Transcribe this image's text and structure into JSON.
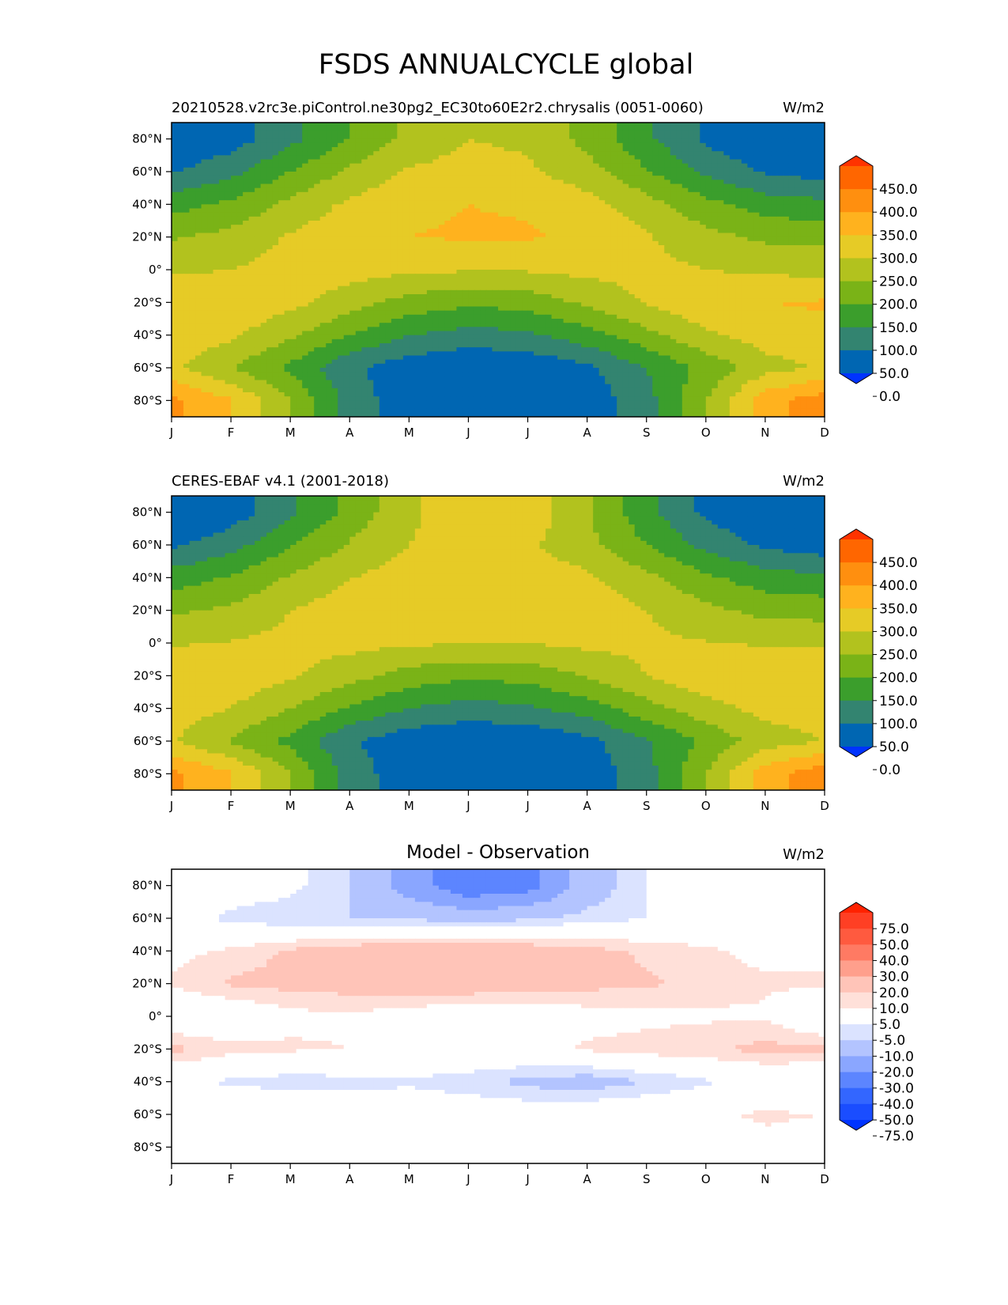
{
  "figure": {
    "title": "FSDS ANNUALCYCLE global"
  },
  "axes": {
    "months": [
      "J",
      "F",
      "M",
      "A",
      "M",
      "J",
      "J",
      "A",
      "S",
      "O",
      "N",
      "D"
    ],
    "lat_ticks": [
      80,
      60,
      40,
      20,
      0,
      -20,
      -40,
      -60,
      -80
    ],
    "lat_labels": [
      "80°N",
      "60°N",
      "40°N",
      "20°N",
      "0°",
      "20°S",
      "40°S",
      "60°S",
      "80°S"
    ],
    "lat_range": [
      -90,
      90
    ]
  },
  "chart_data": [
    {
      "type": "heatmap",
      "title": "",
      "left_label": "20210528.v2rc3e.piControl.ne30pg2_EC30to60E2r2.chrysalis (0051-0060)",
      "units": "W/m2",
      "x": [
        "J",
        "F",
        "M",
        "A",
        "M",
        "J",
        "J",
        "A",
        "S",
        "O",
        "N",
        "D"
      ],
      "y": [
        -80,
        -60,
        -40,
        -20,
        0,
        20,
        40,
        60,
        80
      ],
      "levels": [
        0,
        50,
        100,
        150,
        200,
        250,
        300,
        350,
        400,
        450
      ],
      "colorbar_labels": [
        "450.0",
        "400.0",
        "350.0",
        "300.0",
        "250.0",
        "200.0",
        "150.0",
        "100.0",
        "50.0",
        "0.0"
      ],
      "colors": [
        "#0033ff",
        "#0066b2",
        "#338470",
        "#3b9e2c",
        "#7ab317",
        "#b2c21e",
        "#e6cb26",
        "#ffb21e",
        "#ff8f0f",
        "#ff6600",
        "#ff3300"
      ],
      "values": [
        [
          360,
          305,
          200,
          80,
          15,
          0,
          0,
          20,
          80,
          200,
          330,
          380
        ],
        [
          260,
          200,
          140,
          60,
          20,
          5,
          10,
          40,
          100,
          165,
          230,
          255
        ],
        [
          285,
          260,
          210,
          150,
          100,
          80,
          90,
          130,
          185,
          240,
          275,
          290
        ],
        [
          300,
          290,
          265,
          225,
          180,
          160,
          170,
          210,
          255,
          290,
          300,
          305
        ],
        [
          240,
          250,
          270,
          270,
          260,
          255,
          255,
          265,
          265,
          250,
          240,
          235
        ],
        [
          195,
          215,
          255,
          285,
          300,
          305,
          305,
          290,
          255,
          215,
          190,
          185
        ],
        [
          130,
          160,
          215,
          260,
          290,
          300,
          295,
          270,
          220,
          165,
          125,
          115
        ],
        [
          45,
          85,
          150,
          210,
          255,
          270,
          260,
          220,
          155,
          90,
          45,
          25
        ],
        [
          0,
          25,
          85,
          150,
          215,
          250,
          240,
          185,
          110,
          40,
          5,
          0
        ]
      ]
    },
    {
      "type": "heatmap",
      "title": "",
      "left_label": "CERES-EBAF v4.1 (2001-2018)",
      "units": "W/m2",
      "x": [
        "J",
        "F",
        "M",
        "A",
        "M",
        "J",
        "J",
        "A",
        "S",
        "O",
        "N",
        "D"
      ],
      "y": [
        -80,
        -60,
        -40,
        -20,
        0,
        20,
        40,
        60,
        80
      ],
      "levels": [
        0,
        50,
        100,
        150,
        200,
        250,
        300,
        350,
        400,
        450
      ],
      "colorbar_labels": [
        "450.0",
        "400.0",
        "350.0",
        "300.0",
        "250.0",
        "200.0",
        "150.0",
        "100.0",
        "50.0",
        "0.0"
      ],
      "colors": [
        "#0033ff",
        "#0066b2",
        "#338470",
        "#3b9e2c",
        "#7ab317",
        "#b2c21e",
        "#e6cb26",
        "#ffb21e",
        "#ff8f0f",
        "#ff6600",
        "#ff3300"
      ],
      "values": [
        [
          360,
          305,
          200,
          80,
          15,
          0,
          0,
          20,
          80,
          200,
          330,
          385
        ],
        [
          255,
          195,
          135,
          55,
          18,
          5,
          8,
          35,
          95,
          160,
          225,
          250
        ],
        [
          275,
          250,
          200,
          145,
          100,
          80,
          90,
          125,
          180,
          232,
          265,
          280
        ],
        [
          295,
          285,
          258,
          220,
          178,
          160,
          168,
          205,
          250,
          285,
          295,
          300
        ],
        [
          245,
          252,
          265,
          265,
          258,
          252,
          252,
          262,
          262,
          252,
          245,
          240
        ],
        [
          190,
          210,
          250,
          278,
          290,
          295,
          295,
          282,
          250,
          212,
          185,
          180
        ],
        [
          125,
          155,
          205,
          248,
          275,
          285,
          282,
          260,
          212,
          160,
          122,
          110
        ],
        [
          40,
          80,
          145,
          205,
          250,
          268,
          258,
          215,
          150,
          85,
          40,
          20
        ],
        [
          0,
          22,
          90,
          165,
          240,
          290,
          285,
          205,
          115,
          38,
          3,
          0
        ]
      ]
    },
    {
      "type": "heatmap",
      "title": "Model - Observation",
      "left_label": "",
      "units": "W/m2",
      "x": [
        "J",
        "F",
        "M",
        "A",
        "M",
        "J",
        "J",
        "A",
        "S",
        "O",
        "N",
        "D"
      ],
      "y": [
        -80,
        -60,
        -40,
        -20,
        0,
        20,
        40,
        60,
        80
      ],
      "levels": [
        -75,
        -50,
        -40,
        -30,
        -20,
        -10,
        -5,
        5,
        10,
        20,
        30,
        40,
        50,
        75
      ],
      "colorbar_labels": [
        "75.0",
        "50.0",
        "40.0",
        "30.0",
        "20.0",
        "10.0",
        "5.0",
        "-5.0",
        "-10.0",
        "-20.0",
        "-30.0",
        "-40.0",
        "-50.0",
        "-75.0"
      ],
      "colors": [
        "#0033ff",
        "#1a4dff",
        "#3366ff",
        "#5c85ff",
        "#8aa6ff",
        "#b3c4ff",
        "#dbe3ff",
        "#ffffff",
        "#ffe0d9",
        "#ffc4b8",
        "#ff9f8c",
        "#ff7a63",
        "#ff5a3f",
        "#ff3f24",
        "#ff2200"
      ],
      "values": [
        [
          2,
          1,
          0,
          0,
          0,
          0,
          0,
          1,
          1,
          2,
          3,
          2
        ],
        [
          5,
          4,
          3,
          1,
          0,
          0,
          0,
          1,
          2,
          4,
          6,
          5
        ],
        [
          -4,
          -6,
          -8,
          -7,
          -6,
          -8,
          -12,
          -14,
          -10,
          -6,
          -3,
          -4
        ],
        [
          12,
          7,
          6,
          5,
          3,
          2,
          3,
          6,
          8,
          9,
          12,
          11
        ],
        [
          -3,
          -2,
          3,
          4,
          1,
          -3,
          -2,
          2,
          3,
          4,
          4,
          -4
        ],
        [
          6,
          11,
          12,
          13,
          16,
          16,
          14,
          12,
          11,
          8,
          6,
          6
        ],
        [
          3,
          6,
          11,
          14,
          17,
          17,
          15,
          12,
          9,
          6,
          3,
          3
        ],
        [
          0,
          -7,
          -9,
          -10,
          -11,
          -14,
          -11,
          -8,
          -5,
          -2,
          0,
          0
        ],
        [
          0,
          0,
          -3,
          -10,
          -25,
          -38,
          -35,
          -15,
          -5,
          0,
          0,
          0
        ]
      ]
    }
  ]
}
